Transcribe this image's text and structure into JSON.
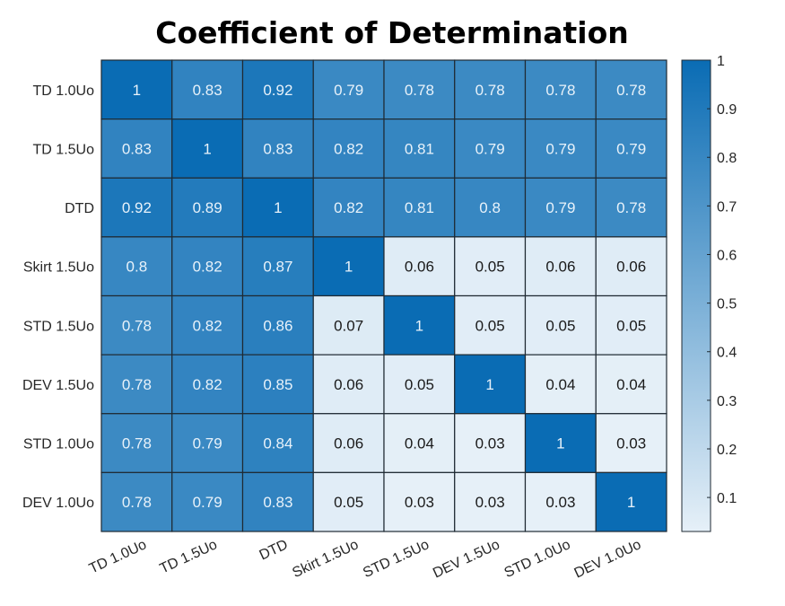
{
  "chart_data": {
    "type": "heatmap",
    "title": "Coefficient of Determination",
    "xlabels": [
      "TD 1.0Uo",
      "TD 1.5Uo",
      "DTD",
      "Skirt 1.5Uo",
      "STD 1.5Uo",
      "DEV 1.5Uo",
      "STD 1.0Uo",
      "DEV 1.0Uo"
    ],
    "ylabels": [
      "TD 1.0Uo",
      "TD 1.5Uo",
      "DTD",
      "Skirt 1.5Uo",
      "STD 1.5Uo",
      "DEV 1.5Uo",
      "STD 1.0Uo",
      "DEV 1.0Uo"
    ],
    "values": [
      [
        1,
        0.83,
        0.92,
        0.79,
        0.78,
        0.78,
        0.78,
        0.78
      ],
      [
        0.83,
        1,
        0.83,
        0.82,
        0.81,
        0.79,
        0.79,
        0.79
      ],
      [
        0.92,
        0.89,
        1,
        0.82,
        0.81,
        0.8,
        0.79,
        0.78
      ],
      [
        0.8,
        0.82,
        0.87,
        1,
        0.06,
        0.05,
        0.06,
        0.06
      ],
      [
        0.78,
        0.82,
        0.86,
        0.07,
        1,
        0.05,
        0.05,
        0.05
      ],
      [
        0.78,
        0.82,
        0.85,
        0.06,
        0.05,
        1,
        0.04,
        0.04
      ],
      [
        0.78,
        0.79,
        0.84,
        0.06,
        0.04,
        0.03,
        1,
        0.03
      ],
      [
        0.78,
        0.79,
        0.83,
        0.05,
        0.03,
        0.03,
        0.03,
        1
      ]
    ],
    "colorbar": {
      "range": [
        0.03,
        1
      ],
      "ticks": [
        0.1,
        0.2,
        0.3,
        0.4,
        0.5,
        0.6,
        0.7,
        0.8,
        0.9,
        1
      ],
      "tick_labels": [
        "0.1",
        "0.2",
        "0.3",
        "0.4",
        "0.5",
        "0.6",
        "0.7",
        "0.8",
        "0.9",
        "1"
      ]
    },
    "colormap": {
      "low": "#e6f0f8",
      "high": "#0a6cb4"
    },
    "grid_color": "#1f2a33"
  }
}
